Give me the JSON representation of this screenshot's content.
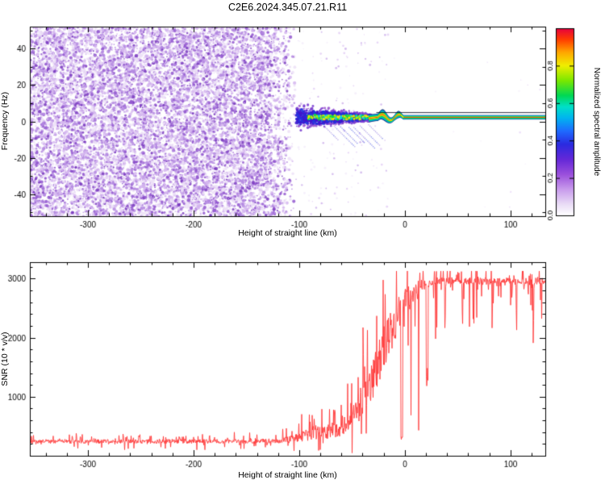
{
  "title": "C2E6.2024.345.07.21.R11",
  "seed": 1337,
  "chart_data": [
    {
      "type": "heatmap",
      "name": "spectrogram",
      "xlabel": "Height of straight line (km)",
      "ylabel": "Frequency (Hz)",
      "xlim": [
        -355,
        133
      ],
      "ylim": [
        -52,
        52
      ],
      "xticks": [
        -300,
        -200,
        -100,
        0,
        100
      ],
      "yticks": [
        -40,
        -20,
        0,
        20,
        40
      ],
      "x_minor_step": 20,
      "y_minor_step": 10,
      "colorbar": {
        "label": "Normalized spectral amplitude",
        "ticks": [
          0.0,
          0.2,
          0.4,
          0.6,
          0.8
        ],
        "range": [
          0,
          1
        ],
        "stops": [
          [
            0,
            "#ffffff"
          ],
          [
            0.06,
            "#e9dcf6"
          ],
          [
            0.14,
            "#c89aec"
          ],
          [
            0.22,
            "#9a4fdc"
          ],
          [
            0.3,
            "#6428d8"
          ],
          [
            0.38,
            "#2b2be0"
          ],
          [
            0.45,
            "#1f6aff"
          ],
          [
            0.52,
            "#00b4f0"
          ],
          [
            0.58,
            "#00e0c8"
          ],
          [
            0.64,
            "#00d855"
          ],
          [
            0.72,
            "#7ae800"
          ],
          [
            0.8,
            "#f0ee00"
          ],
          [
            0.87,
            "#ffa800"
          ],
          [
            0.94,
            "#ff3c00"
          ],
          [
            1,
            "#e60040"
          ]
        ]
      },
      "noise_field": {
        "x_full_until": -132,
        "x_fade_to_zero": -102,
        "sparse_until": -14,
        "dot_count": 13500,
        "sparse_count": 240,
        "speck_count_right": 14,
        "colors": [
          "#ece1f7",
          "#d4b5ef",
          "#b387e0",
          "#9257cf",
          "#7736bd"
        ]
      },
      "signal": {
        "scatter_x": [
          -103,
          -32
        ],
        "scatter_count": 2600,
        "center_freq": 2.2,
        "sigma_start": 5.2,
        "sigma_end": 1.5,
        "line_x": [
          -34,
          133
        ],
        "wiggle_x": [
          -26,
          -2
        ],
        "wiggle_amp": 1.6,
        "wiggle_freq": 0.39,
        "upper_line_freq": 5.1,
        "core_colors": [
          "#00d2ea",
          "#00dc50",
          "#b5ee00",
          "#ffe800"
        ],
        "mid_colors": [
          "#2433dd",
          "#4114cc"
        ],
        "outer_colors": [
          "#7a3fd0",
          "#9b59d0"
        ],
        "band_stops": [
          [
            0,
            "#141464"
          ],
          [
            0.16,
            "#00b4e6"
          ],
          [
            0.3,
            "#00d84a"
          ],
          [
            0.42,
            "#f4ee00"
          ],
          [
            0.5,
            "#ff2222"
          ],
          [
            0.58,
            "#f4ee00"
          ],
          [
            0.7,
            "#00d84a"
          ],
          [
            0.84,
            "#00b4e6"
          ],
          [
            1,
            "#141464"
          ]
        ]
      },
      "grid": false
    },
    {
      "type": "line",
      "name": "snr",
      "xlabel": "Height of straight line (km)",
      "ylabel": "SNR (10 * v/v)",
      "xlim": [
        -355,
        133
      ],
      "ylim": [
        0,
        3280
      ],
      "xticks": [
        -300,
        -200,
        -100,
        0,
        100
      ],
      "yticks": [
        1000,
        2000,
        3000
      ],
      "x_minor_step": 20,
      "y_minor_step": 200,
      "series": [
        {
          "name": "SNR",
          "color": "#ff3232",
          "envelope": [
            [
              -355,
              240,
              90
            ],
            [
              -150,
              245,
              90
            ],
            [
              -118,
              255,
              105
            ],
            [
              -100,
              300,
              190
            ],
            [
              -88,
              390,
              340
            ],
            [
              -75,
              385,
              260
            ],
            [
              -62,
              430,
              300
            ],
            [
              -50,
              650,
              460
            ],
            [
              -40,
              900,
              660
            ],
            [
              -30,
              1300,
              860
            ],
            [
              -20,
              1800,
              950
            ],
            [
              -10,
              2250,
              850
            ],
            [
              -2,
              2500,
              760
            ],
            [
              8,
              2750,
              460
            ],
            [
              18,
              2900,
              260
            ],
            [
              28,
              2960,
              150
            ],
            [
              133,
              2960,
              150
            ]
          ],
          "dropouts": [
            [
              -3,
              300
            ],
            [
              6,
              800
            ],
            [
              13,
              480
            ],
            [
              21,
              1300
            ],
            [
              30,
              1900
            ],
            [
              38,
              2300
            ],
            [
              55,
              2550
            ],
            [
              83,
              2500
            ],
            [
              101,
              2600
            ],
            [
              120,
              2650
            ]
          ]
        }
      ],
      "grid": false
    }
  ]
}
